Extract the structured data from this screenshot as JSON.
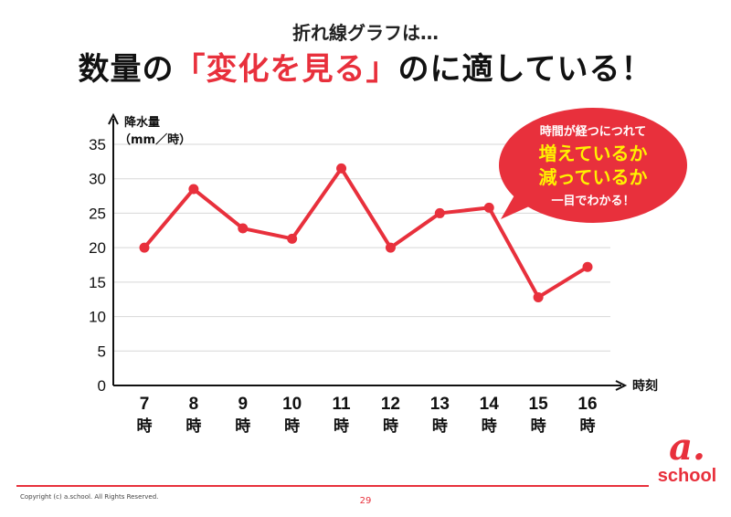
{
  "slide": {
    "subtitle": "折れ線グラフは…",
    "headline_before": "数量の",
    "headline_accent": "「変化を見る」",
    "headline_after": "のに適している！",
    "page_number": "29",
    "copyright": "Copyright (c) a.school. All Rights Reserved.",
    "logo_mark": "a.",
    "logo_word": "school"
  },
  "callout": {
    "line1": "時間が経つにつれて",
    "line2": "増えているか",
    "line3": "減っているか",
    "line4": "一目でわかる！",
    "fill_color": "#e8303c",
    "text_color": "#ffffff",
    "highlight_color": "#fff200"
  },
  "chart_data": {
    "type": "line",
    "ylabel": "降水量",
    "ylabel_unit": "（mm／時）",
    "xlabel": "時刻",
    "ylim": [
      0,
      35
    ],
    "y_ticks": [
      0,
      5,
      10,
      15,
      20,
      25,
      30,
      35
    ],
    "categories": [
      "7",
      "8",
      "9",
      "10",
      "11",
      "12",
      "13",
      "14",
      "15",
      "16"
    ],
    "category_suffix": "時",
    "series": [
      {
        "name": "降水量",
        "values": [
          20,
          28.5,
          22.8,
          21.3,
          31.5,
          20,
          25,
          25.8,
          12.8,
          17.2
        ],
        "color": "#e8303c"
      }
    ],
    "grid": true
  }
}
